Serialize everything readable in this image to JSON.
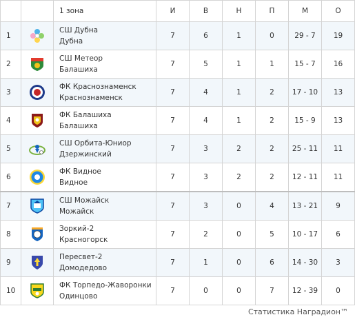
{
  "header": {
    "zone_label": "1 зона",
    "columns": [
      "И",
      "В",
      "Н",
      "П",
      "М",
      "О"
    ]
  },
  "rows": [
    {
      "pos": "1",
      "team": "СШ Дубна",
      "city": "Дубна",
      "games": "7",
      "wins": "6",
      "draws": "1",
      "losses": "0",
      "goals": "29 - 7",
      "points": "19",
      "emblem": "flower-emblem-icon",
      "colors": [
        "#4fb3e8",
        "#f7a8c8",
        "#8fd16a"
      ]
    },
    {
      "pos": "2",
      "team": "СШ Метеор",
      "city": "Балашиха",
      "games": "7",
      "wins": "5",
      "draws": "1",
      "losses": "1",
      "goals": "15 - 7",
      "points": "16",
      "emblem": "meteor-crest-icon",
      "colors": [
        "#2e8b3a",
        "#e23b2e",
        "#f3c21b"
      ]
    },
    {
      "pos": "3",
      "team": "ФК Краснознаменск",
      "city": "Краснознаменск",
      "games": "7",
      "wins": "4",
      "draws": "1",
      "losses": "2",
      "goals": "17 - 10",
      "points": "13",
      "emblem": "round-ball-crest-icon",
      "colors": [
        "#c62828",
        "#1e3a8a",
        "#ffffff"
      ]
    },
    {
      "pos": "4",
      "team": "ФК Балашиха",
      "city": "Балашиха",
      "games": "7",
      "wins": "4",
      "draws": "1",
      "losses": "2",
      "goals": "15 - 9",
      "points": "13",
      "emblem": "shield-crest-icon",
      "colors": [
        "#8b1a1a",
        "#f0c419",
        "#ffffff"
      ]
    },
    {
      "pos": "5",
      "team": "СШ Орбита-Юниор",
      "city": "Дзержинский",
      "games": "7",
      "wins": "3",
      "draws": "2",
      "losses": "2",
      "goals": "25 - 11",
      "points": "11",
      "emblem": "orbit-player-icon",
      "colors": [
        "#7cb342",
        "#1565c0",
        "#ffffff"
      ]
    },
    {
      "pos": "6",
      "team": "ФК Видное",
      "city": "Видное",
      "games": "7",
      "wins": "3",
      "draws": "2",
      "losses": "2",
      "goals": "12 - 11",
      "points": "11",
      "emblem": "round-crest-icon",
      "colors": [
        "#1e88e5",
        "#fdd835",
        "#ffffff"
      ]
    },
    {
      "pos": "7",
      "team": "СШ Можайск",
      "city": "Можайск",
      "games": "7",
      "wins": "3",
      "draws": "0",
      "losses": "4",
      "goals": "13 - 21",
      "points": "9",
      "emblem": "town-shield-icon",
      "colors": [
        "#0d47a1",
        "#4fc3f7",
        "#ffffff"
      ]
    },
    {
      "pos": "8",
      "team": "Зоркий-2",
      "city": "Красногорск",
      "games": "7",
      "wins": "2",
      "draws": "0",
      "losses": "5",
      "goals": "10 - 17",
      "points": "6",
      "emblem": "ball-shield-icon",
      "colors": [
        "#1565c0",
        "#ffffff",
        "#f9a825"
      ]
    },
    {
      "pos": "9",
      "team": "Пересвет-2",
      "city": "Домодедово",
      "games": "7",
      "wins": "1",
      "draws": "0",
      "losses": "6",
      "goals": "14 - 30",
      "points": "3",
      "emblem": "knight-shield-icon",
      "colors": [
        "#3949ab",
        "#fdd835",
        "#ffffff"
      ]
    },
    {
      "pos": "10",
      "team": "ФК Торпедо-Жаворонки",
      "city": "Одинцово",
      "games": "7",
      "wins": "0",
      "draws": "0",
      "losses": "7",
      "goals": "12 - 39",
      "points": "0",
      "emblem": "torpedo-shield-icon",
      "colors": [
        "#f9d71c",
        "#2e7d32",
        "#ffffff"
      ]
    }
  ],
  "footer": {
    "text": "Статистика Наградион™"
  }
}
